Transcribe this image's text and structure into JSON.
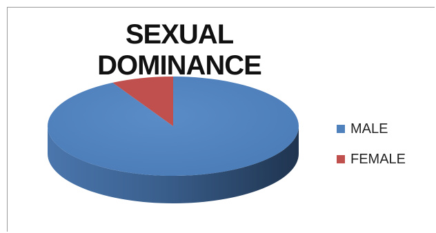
{
  "chart_data": {
    "type": "pie",
    "title": "SEXUAL DOMINANCE",
    "legend_position": "right",
    "slices": [
      {
        "label": "MALE",
        "value": 92,
        "color": "#4F81BD"
      },
      {
        "label": "FEMALE",
        "value": 8,
        "color": "#C0504D"
      }
    ]
  }
}
